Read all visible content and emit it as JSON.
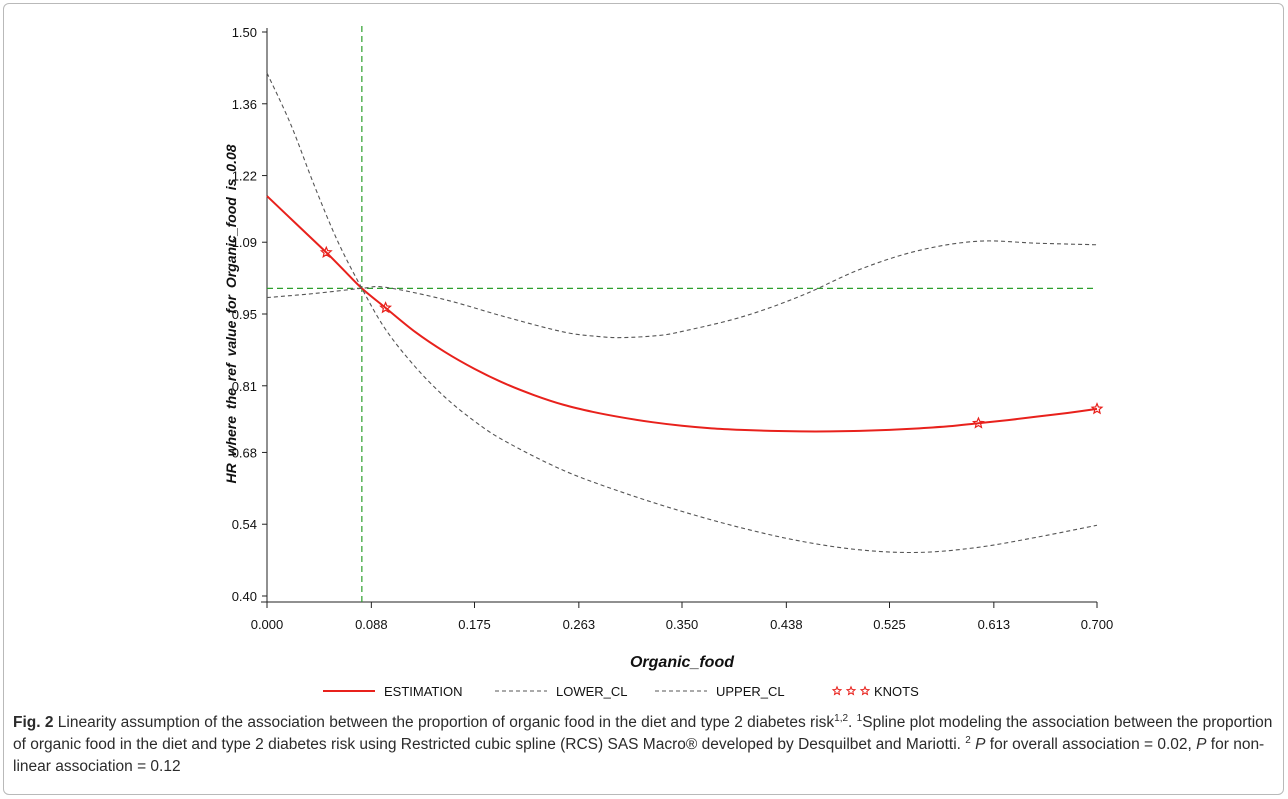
{
  "chart_data": {
    "type": "line",
    "xlabel": "Organic_food",
    "ylabel": "HR where the ref value for Organic_food is 0.08",
    "xlim": [
      0.0,
      0.7
    ],
    "ylim": [
      0.4,
      1.5
    ],
    "x_ticks": [
      "0.000",
      "0.088",
      "0.175",
      "0.263",
      "0.350",
      "0.438",
      "0.525",
      "0.613",
      "0.700"
    ],
    "y_ticks": [
      "0.40",
      "0.54",
      "0.68",
      "0.81",
      "0.95",
      "1.09",
      "1.22",
      "1.36",
      "1.50"
    ],
    "reference_lines": {
      "x": 0.08,
      "y": 1.0,
      "color": "#2ca02c"
    },
    "grid": false,
    "legend_position": "bottom",
    "series": [
      {
        "name": "ESTIMATION",
        "color": "#e8211c",
        "style": "solid",
        "x": [
          0.0,
          0.025,
          0.05,
          0.065,
          0.08,
          0.1,
          0.125,
          0.15,
          0.175,
          0.2,
          0.225,
          0.25,
          0.275,
          0.3,
          0.325,
          0.35,
          0.375,
          0.4,
          0.425,
          0.45,
          0.475,
          0.5,
          0.525,
          0.55,
          0.575,
          0.6,
          0.625,
          0.65,
          0.675,
          0.7
        ],
        "y": [
          1.18,
          1.125,
          1.07,
          1.035,
          1.0,
          0.962,
          0.915,
          0.876,
          0.843,
          0.815,
          0.792,
          0.773,
          0.759,
          0.748,
          0.739,
          0.732,
          0.727,
          0.724,
          0.722,
          0.721,
          0.721,
          0.722,
          0.724,
          0.727,
          0.731,
          0.737,
          0.743,
          0.75,
          0.757,
          0.765
        ]
      },
      {
        "name": "LOWER_CL",
        "color": "#555555",
        "style": "dashed",
        "x": [
          0.0,
          0.02,
          0.04,
          0.06,
          0.08,
          0.1,
          0.125,
          0.15,
          0.175,
          0.2,
          0.25,
          0.3,
          0.35,
          0.4,
          0.45,
          0.5,
          0.55,
          0.6,
          0.65,
          0.7
        ],
        "y": [
          1.42,
          1.32,
          1.2,
          1.09,
          1.0,
          0.92,
          0.847,
          0.788,
          0.741,
          0.703,
          0.645,
          0.602,
          0.565,
          0.533,
          0.507,
          0.49,
          0.485,
          0.495,
          0.515,
          0.538
        ]
      },
      {
        "name": "UPPER_CL",
        "color": "#555555",
        "style": "dashed",
        "x": [
          0.0,
          0.04,
          0.08,
          0.1,
          0.15,
          0.2,
          0.25,
          0.28,
          0.3,
          0.33,
          0.35,
          0.4,
          0.45,
          0.5,
          0.55,
          0.6,
          0.65,
          0.7
        ],
        "y": [
          0.982,
          0.99,
          1.0,
          1.002,
          0.978,
          0.945,
          0.915,
          0.906,
          0.904,
          0.908,
          0.916,
          0.944,
          0.985,
          1.037,
          1.074,
          1.092,
          1.088,
          1.085
        ]
      },
      {
        "name": "KNOTS",
        "color": "#e8211c",
        "style": "star",
        "x": [
          0.05,
          0.1,
          0.6,
          0.7
        ],
        "y": [
          1.07,
          0.962,
          0.737,
          0.765
        ]
      }
    ]
  },
  "caption": {
    "label": "Fig. 2",
    "line1": " Linearity assumption of the association between the proportion of organic food in the diet and type 2 diabetes risk",
    "sup1": "1,2",
    "line1_tail": ". ",
    "sup2": "1",
    "line2": "Spline plot modeling the association between the proportion of organic food in the diet and type 2 diabetes risk using Restricted cubic spline (RCS) SAS Macro® developed by Desquilbet and Mariotti. ",
    "sup3": "2",
    "p_letter": "P",
    "p1_text": " for overall association = 0.02, ",
    "p2_text": " for non-linear association = 0.12"
  }
}
